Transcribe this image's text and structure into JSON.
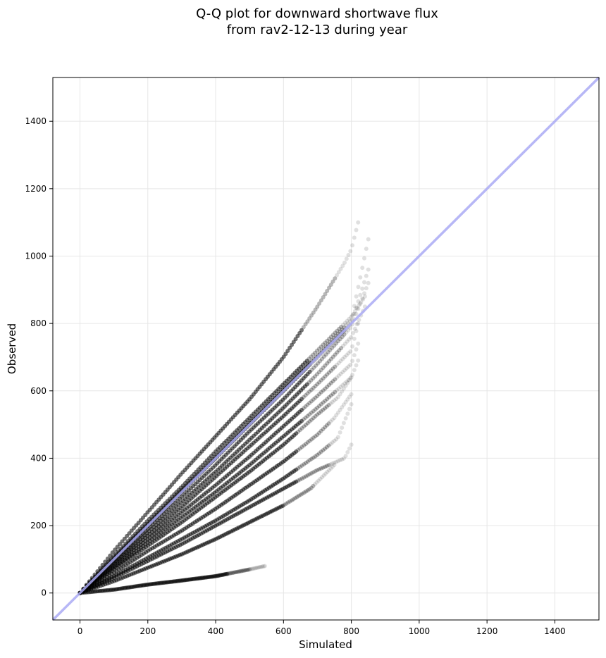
{
  "chart_data": {
    "type": "scatter",
    "title": [
      "Q-Q plot for downward shortwave flux",
      "from rav2-12-13 during year"
    ],
    "xlabel": "Simulated",
    "ylabel": "Observed",
    "xlim": [
      -80,
      1530
    ],
    "ylim": [
      -80,
      1530
    ],
    "xticks": [
      0,
      200,
      400,
      600,
      800,
      1000,
      1200,
      1400
    ],
    "yticks": [
      0,
      200,
      400,
      600,
      800,
      1000,
      1200,
      1400
    ],
    "grid": true,
    "colors": {
      "points": "#000000",
      "reference_line": "#aaaaf5",
      "grid": "#e6e6e6"
    },
    "reference_line": {
      "label": "1:1",
      "from": [
        -80,
        -80
      ],
      "to": [
        1530,
        1530
      ]
    },
    "series_shape": [
      {
        "x": [
          0,
          100,
          200,
          300,
          400,
          500,
          600,
          700,
          780,
          800,
          820
        ],
        "y": [
          0,
          125,
          240,
          355,
          465,
          575,
          700,
          850,
          980,
          1020,
          1100
        ]
      },
      {
        "x": [
          0,
          100,
          200,
          300,
          400,
          500,
          600,
          700,
          800,
          840
        ],
        "y": [
          0,
          110,
          215,
          315,
          420,
          520,
          620,
          720,
          820,
          880
        ]
      },
      {
        "x": [
          0,
          100,
          200,
          300,
          400,
          500,
          600,
          700,
          800,
          850
        ],
        "y": [
          0,
          105,
          205,
          305,
          405,
          505,
          605,
          705,
          810,
          1050
        ]
      },
      {
        "x": [
          0,
          100,
          200,
          300,
          400,
          500,
          600,
          700,
          800,
          850
        ],
        "y": [
          0,
          100,
          200,
          300,
          400,
          500,
          600,
          700,
          800,
          960
        ]
      },
      {
        "x": [
          0,
          100,
          200,
          300,
          400,
          500,
          600,
          700,
          800,
          850
        ],
        "y": [
          0,
          95,
          190,
          285,
          380,
          480,
          575,
          680,
          790,
          920
        ]
      },
      {
        "x": [
          0,
          100,
          200,
          300,
          400,
          500,
          600,
          700,
          800,
          840
        ],
        "y": [
          0,
          90,
          180,
          270,
          360,
          455,
          550,
          650,
          760,
          850
        ]
      },
      {
        "x": [
          0,
          100,
          200,
          300,
          400,
          500,
          600,
          700,
          800,
          820
        ],
        "y": [
          0,
          85,
          170,
          255,
          345,
          435,
          525,
          620,
          720,
          800
        ]
      },
      {
        "x": [
          0,
          100,
          200,
          300,
          400,
          500,
          600,
          700,
          800,
          820
        ],
        "y": [
          0,
          80,
          160,
          240,
          320,
          405,
          495,
          585,
          680,
          740
        ]
      },
      {
        "x": [
          0,
          100,
          200,
          300,
          400,
          500,
          600,
          700,
          800,
          820
        ],
        "y": [
          0,
          75,
          150,
          225,
          300,
          380,
          465,
          550,
          640,
          690
        ]
      },
      {
        "x": [
          0,
          100,
          200,
          300,
          400,
          500,
          600,
          700,
          760,
          800
        ],
        "y": [
          0,
          70,
          140,
          210,
          285,
          360,
          440,
          530,
          580,
          640
        ]
      },
      {
        "x": [
          0,
          100,
          200,
          300,
          400,
          500,
          600,
          700,
          750,
          800
        ],
        "y": [
          0,
          60,
          125,
          185,
          250,
          320,
          390,
          470,
          520,
          590
        ]
      },
      {
        "x": [
          0,
          100,
          200,
          300,
          400,
          500,
          600,
          700,
          760,
          800
        ],
        "y": [
          0,
          50,
          105,
          160,
          215,
          275,
          340,
          410,
          460,
          560
        ]
      },
      {
        "x": [
          0,
          100,
          200,
          300,
          400,
          500,
          600,
          700,
          780,
          800
        ],
        "y": [
          0,
          45,
          95,
          145,
          200,
          255,
          310,
          365,
          400,
          440
        ]
      },
      {
        "x": [
          0,
          100,
          200,
          300,
          400,
          500,
          600,
          680,
          750
        ],
        "y": [
          0,
          35,
          75,
          115,
          160,
          210,
          260,
          310,
          380
        ]
      },
      {
        "x": [
          0,
          100,
          200,
          300,
          400,
          500,
          545
        ],
        "y": [
          0,
          10,
          25,
          37,
          50,
          70,
          80
        ]
      }
    ]
  }
}
